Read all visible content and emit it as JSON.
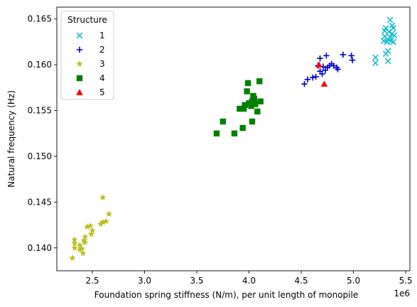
{
  "chart_data": {
    "type": "scatter",
    "title": "",
    "xlabel": "Foundation spring stiffness (N/m), per unit length of monopile",
    "ylabel": "Natural frequency (Hz)",
    "x_offset_label": "1e6",
    "x_scale": 1000000,
    "xlim": [
      2.16,
      5.54
    ],
    "ylim": [
      0.1375,
      0.1663
    ],
    "x_ticks": [
      2.5,
      3.0,
      3.5,
      4.0,
      4.5,
      5.0,
      5.5
    ],
    "x_tick_labels": [
      "2.5",
      "3.0",
      "3.5",
      "4.0",
      "4.5",
      "5.0",
      "5.5"
    ],
    "y_ticks": [
      0.14,
      0.145,
      0.15,
      0.155,
      0.16,
      0.165
    ],
    "y_tick_labels": [
      "0.140",
      "0.145",
      "0.150",
      "0.155",
      "0.160",
      "0.165"
    ],
    "grid": false,
    "legend": {
      "title": "Structure",
      "position": "top-left"
    },
    "series": [
      {
        "name": "1",
        "marker": "x",
        "color": "#17becf",
        "points": [
          [
            5.21,
            0.1608
          ],
          [
            5.21,
            0.1602
          ],
          [
            5.29,
            0.1626
          ],
          [
            5.3,
            0.1631
          ],
          [
            5.3,
            0.1637
          ],
          [
            5.31,
            0.164
          ],
          [
            5.31,
            0.1612
          ],
          [
            5.32,
            0.1625
          ],
          [
            5.33,
            0.1615
          ],
          [
            5.33,
            0.1604
          ],
          [
            5.34,
            0.1636
          ],
          [
            5.35,
            0.163
          ],
          [
            5.35,
            0.1649
          ],
          [
            5.36,
            0.1626
          ],
          [
            5.37,
            0.1634
          ],
          [
            5.37,
            0.1643
          ],
          [
            5.38,
            0.164
          ],
          [
            5.38,
            0.1625
          ],
          [
            5.39,
            0.1632
          ],
          [
            5.33,
            0.1628
          ]
        ]
      },
      {
        "name": "2",
        "marker": "+",
        "color": "#0000cc",
        "points": [
          [
            4.53,
            0.1579
          ],
          [
            4.56,
            0.1584
          ],
          [
            4.61,
            0.1586
          ],
          [
            4.64,
            0.1587
          ],
          [
            4.66,
            0.1599
          ],
          [
            4.68,
            0.1607
          ],
          [
            4.68,
            0.1593
          ],
          [
            4.71,
            0.1598
          ],
          [
            4.73,
            0.1594
          ],
          [
            4.74,
            0.161
          ],
          [
            4.75,
            0.1597
          ],
          [
            4.77,
            0.1599
          ],
          [
            4.81,
            0.1599
          ],
          [
            4.85,
            0.1595
          ],
          [
            4.9,
            0.1611
          ],
          [
            4.98,
            0.161
          ],
          [
            4.99,
            0.1605
          ],
          [
            4.7,
            0.159
          ],
          [
            4.79,
            0.1601
          ],
          [
            4.84,
            0.1597
          ]
        ]
      },
      {
        "name": "3",
        "marker": "*",
        "color": "#bcbd22",
        "points": [
          [
            2.31,
            0.1389
          ],
          [
            2.33,
            0.1409
          ],
          [
            2.33,
            0.1405
          ],
          [
            2.33,
            0.14
          ],
          [
            2.38,
            0.1403
          ],
          [
            2.4,
            0.1399
          ],
          [
            2.41,
            0.1394
          ],
          [
            2.42,
            0.1408
          ],
          [
            2.43,
            0.1412
          ],
          [
            2.43,
            0.1406
          ],
          [
            2.45,
            0.1423
          ],
          [
            2.48,
            0.1424
          ],
          [
            2.49,
            0.1415
          ],
          [
            2.5,
            0.1419
          ],
          [
            2.58,
            0.1426
          ],
          [
            2.6,
            0.1455
          ],
          [
            2.6,
            0.1428
          ],
          [
            2.63,
            0.1429
          ],
          [
            2.66,
            0.1437
          ],
          [
            2.38,
            0.1398
          ]
        ]
      },
      {
        "name": "4",
        "marker": "s",
        "color": "#008000",
        "points": [
          [
            3.69,
            0.1525
          ],
          [
            3.75,
            0.1538
          ],
          [
            3.86,
            0.1525
          ],
          [
            3.91,
            0.1552
          ],
          [
            3.94,
            0.1531
          ],
          [
            3.95,
            0.1552
          ],
          [
            3.96,
            0.1556
          ],
          [
            3.98,
            0.1571
          ],
          [
            3.99,
            0.158
          ],
          [
            4.0,
            0.1558
          ],
          [
            4.02,
            0.1555
          ],
          [
            4.03,
            0.1538
          ],
          [
            4.03,
            0.156
          ],
          [
            4.04,
            0.1566
          ],
          [
            4.05,
            0.1563
          ],
          [
            4.06,
            0.1557
          ],
          [
            4.08,
            0.1549
          ],
          [
            4.1,
            0.1582
          ],
          [
            4.11,
            0.156
          ],
          [
            4.04,
            0.1561
          ]
        ]
      },
      {
        "name": "5",
        "marker": "^",
        "color": "#ff0000",
        "points": [
          [
            4.67,
            0.16
          ],
          [
            4.72,
            0.1579
          ]
        ]
      }
    ]
  }
}
